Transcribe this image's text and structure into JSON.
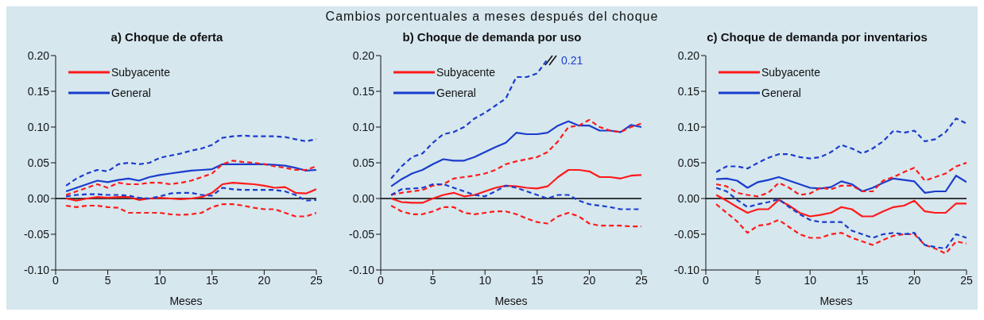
{
  "chart_data": [
    {
      "type": "line",
      "title": "a) Choque de oferta",
      "xlabel": "Meses",
      "x": [
        1,
        2,
        3,
        4,
        5,
        6,
        7,
        8,
        9,
        10,
        11,
        12,
        13,
        14,
        15,
        16,
        17,
        18,
        19,
        20,
        21,
        22,
        23,
        24,
        25
      ],
      "xlim": [
        0,
        25
      ],
      "xticks": [
        0,
        5,
        10,
        15,
        20,
        25
      ],
      "ylim": [
        -0.1,
        0.2
      ],
      "yticks": [
        {
          "value": -0.1,
          "label": "-0.10"
        },
        {
          "value": -0.05,
          "label": "-0.05"
        },
        {
          "value": 0,
          "label": "0.00"
        },
        {
          "value": 0.05,
          "label": "0.05"
        },
        {
          "value": 0.1,
          "label": "0.10"
        },
        {
          "value": 0.15,
          "label": "0.15"
        },
        {
          "value": 0.2,
          "label": "0.20"
        }
      ],
      "grid": false,
      "legend": "top left",
      "marker": "none",
      "ref_lines": [
        {
          "axis": "y",
          "value": 0,
          "color": "#000000"
        }
      ],
      "series": [
        {
          "name": "Subyacente",
          "color": "#ff1a1a",
          "line_style": "solid",
          "values": [
            0.0,
            -0.003,
            0.0,
            0.002,
            0.001,
            0.002,
            0.002,
            -0.002,
            0.0,
            0.001,
            0.0,
            -0.001,
            0.0,
            0.002,
            0.008,
            0.02,
            0.022,
            0.021,
            0.02,
            0.018,
            0.015,
            0.016,
            0.008,
            0.007,
            0.013
          ]
        },
        {
          "name": "General",
          "color": "#1a3ccc",
          "line_style": "solid",
          "values": [
            0.01,
            0.015,
            0.02,
            0.025,
            0.023,
            0.026,
            0.028,
            0.025,
            0.03,
            0.033,
            0.035,
            0.037,
            0.039,
            0.04,
            0.041,
            0.048,
            0.048,
            0.048,
            0.048,
            0.048,
            0.047,
            0.046,
            0.043,
            0.039,
            0.04
          ]
        },
        {
          "color": "#ff1a1a",
          "line_style": "dashed",
          "values": [
            0.005,
            0.01,
            0.015,
            0.02,
            0.015,
            0.022,
            0.02,
            0.02,
            0.022,
            0.022,
            0.02,
            0.022,
            0.025,
            0.03,
            0.035,
            0.048,
            0.053,
            0.051,
            0.05,
            0.048,
            0.045,
            0.043,
            0.04,
            0.04,
            0.045
          ]
        },
        {
          "color": "#ff1a1a",
          "line_style": "dashed",
          "values": [
            -0.01,
            -0.012,
            -0.01,
            -0.01,
            -0.012,
            -0.013,
            -0.02,
            -0.02,
            -0.02,
            -0.02,
            -0.022,
            -0.023,
            -0.022,
            -0.02,
            -0.012,
            -0.008,
            -0.008,
            -0.01,
            -0.013,
            -0.015,
            -0.015,
            -0.02,
            -0.025,
            -0.025,
            -0.02
          ]
        },
        {
          "color": "#1a3ccc",
          "line_style": "dashed",
          "values": [
            0.018,
            0.028,
            0.035,
            0.04,
            0.038,
            0.048,
            0.05,
            0.048,
            0.05,
            0.057,
            0.06,
            0.063,
            0.067,
            0.07,
            0.075,
            0.085,
            0.087,
            0.088,
            0.087,
            0.087,
            0.087,
            0.086,
            0.083,
            0.08,
            0.083
          ]
        },
        {
          "color": "#1a3ccc",
          "line_style": "dashed",
          "values": [
            0.003,
            0.005,
            0.006,
            0.006,
            0.005,
            0.005,
            0.004,
            0.001,
            0.0,
            0.003,
            0.007,
            0.008,
            0.008,
            0.005,
            0.004,
            0.015,
            0.013,
            0.012,
            0.012,
            0.012,
            0.012,
            0.01,
            0.005,
            -0.003,
            -0.002
          ]
        }
      ]
    },
    {
      "type": "line",
      "title": "b) Choque de demanda por uso",
      "subtitle": "Cambios porcentuales a meses después del choque",
      "xlabel": "Meses",
      "x": [
        1,
        2,
        3,
        4,
        5,
        6,
        7,
        8,
        9,
        10,
        11,
        12,
        13,
        14,
        15,
        16,
        17,
        18,
        19,
        20,
        21,
        22,
        23,
        24,
        25
      ],
      "xlim": [
        0,
        25
      ],
      "xticks": [
        0,
        5,
        10,
        15,
        20,
        25
      ],
      "ylim": [
        -0.1,
        0.2
      ],
      "yticks": [
        {
          "value": -0.1,
          "label": "-0.10"
        },
        {
          "value": -0.05,
          "label": "-0.05"
        },
        {
          "value": 0,
          "label": "0.00"
        },
        {
          "value": 0.05,
          "label": "0.05"
        },
        {
          "value": 0.1,
          "label": "0.10"
        },
        {
          "value": 0.15,
          "label": "0.15"
        },
        {
          "value": 0.2,
          "label": "0.20"
        }
      ],
      "grid": false,
      "legend": "top left",
      "marker": "none",
      "ref_lines": [
        {
          "axis": "y",
          "value": 0,
          "color": "#000000"
        }
      ],
      "annotations": [
        "0.21"
      ],
      "series": [
        {
          "name": "Subyacente",
          "color": "#ff1a1a",
          "line_style": "solid",
          "values": [
            0.0,
            -0.005,
            -0.006,
            -0.006,
            0.0,
            0.005,
            0.008,
            0.003,
            0.005,
            0.01,
            0.015,
            0.018,
            0.017,
            0.015,
            0.014,
            0.017,
            0.03,
            0.04,
            0.04,
            0.038,
            0.03,
            0.03,
            0.028,
            0.032,
            0.033
          ]
        },
        {
          "name": "General",
          "color": "#1a3ccc",
          "line_style": "solid",
          "values": [
            0.017,
            0.027,
            0.035,
            0.04,
            0.048,
            0.055,
            0.053,
            0.053,
            0.058,
            0.065,
            0.072,
            0.078,
            0.092,
            0.09,
            0.09,
            0.092,
            0.102,
            0.108,
            0.102,
            0.102,
            0.095,
            0.095,
            0.093,
            0.103,
            0.1
          ]
        },
        {
          "color": "#ff1a1a",
          "line_style": "dashed",
          "values": [
            0.005,
            0.008,
            0.01,
            0.012,
            0.018,
            0.02,
            0.028,
            0.03,
            0.032,
            0.035,
            0.04,
            0.048,
            0.052,
            0.055,
            0.058,
            0.065,
            0.08,
            0.1,
            0.102,
            0.11,
            0.1,
            0.095,
            0.093,
            0.1,
            0.105
          ]
        },
        {
          "color": "#ff1a1a",
          "line_style": "dashed",
          "values": [
            -0.01,
            -0.018,
            -0.022,
            -0.022,
            -0.018,
            -0.012,
            -0.012,
            -0.02,
            -0.022,
            -0.02,
            -0.018,
            -0.018,
            -0.022,
            -0.028,
            -0.033,
            -0.035,
            -0.025,
            -0.02,
            -0.025,
            -0.035,
            -0.038,
            -0.038,
            -0.038,
            -0.039,
            -0.039
          ]
        },
        {
          "color": "#1a3ccc",
          "line_style": "dashed",
          "values": [
            0.028,
            0.045,
            0.058,
            0.063,
            0.078,
            0.09,
            0.093,
            0.1,
            0.112,
            0.12,
            0.13,
            0.14,
            0.17,
            0.17,
            0.175,
            0.195,
            null,
            null,
            null,
            null,
            null,
            null,
            null,
            null,
            null
          ]
        },
        {
          "color": "#1a3ccc",
          "line_style": "dashed",
          "values": [
            0.005,
            0.013,
            0.014,
            0.015,
            0.02,
            0.02,
            0.015,
            0.01,
            0.005,
            0.003,
            0.01,
            0.018,
            0.015,
            0.01,
            0.005,
            0.0,
            0.005,
            0.005,
            -0.003,
            -0.008,
            -0.01,
            -0.012,
            -0.015,
            -0.015,
            -0.015
          ]
        }
      ]
    },
    {
      "type": "line",
      "title": "c) Choque de demanda por inventarios",
      "xlabel": "Meses",
      "x": [
        1,
        2,
        3,
        4,
        5,
        6,
        7,
        8,
        9,
        10,
        11,
        12,
        13,
        14,
        15,
        16,
        17,
        18,
        19,
        20,
        21,
        22,
        23,
        24,
        25
      ],
      "xlim": [
        0,
        25
      ],
      "xticks": [
        0,
        5,
        10,
        15,
        20,
        25
      ],
      "ylim": [
        -0.1,
        0.2
      ],
      "yticks": [
        {
          "value": -0.1,
          "label": "-0.10"
        },
        {
          "value": -0.05,
          "label": "-0.05"
        },
        {
          "value": 0,
          "label": "0.00"
        },
        {
          "value": 0.05,
          "label": "0.05"
        },
        {
          "value": 0.1,
          "label": "0.10"
        },
        {
          "value": 0.15,
          "label": "0.15"
        },
        {
          "value": 0.2,
          "label": "0.20"
        }
      ],
      "grid": false,
      "legend": "top left",
      "marker": "none",
      "ref_lines": [
        {
          "axis": "y",
          "value": 0,
          "color": "#000000"
        }
      ],
      "series": [
        {
          "name": "Subyacente",
          "color": "#ff1a1a",
          "line_style": "solid",
          "values": [
            0.005,
            -0.003,
            -0.012,
            -0.02,
            -0.015,
            -0.015,
            -0.002,
            -0.01,
            -0.02,
            -0.025,
            -0.023,
            -0.02,
            -0.012,
            -0.015,
            -0.025,
            -0.025,
            -0.018,
            -0.012,
            -0.01,
            -0.003,
            -0.018,
            -0.02,
            -0.02,
            -0.007,
            -0.007
          ]
        },
        {
          "name": "General",
          "color": "#1a3ccc",
          "line_style": "solid",
          "values": [
            0.027,
            0.028,
            0.025,
            0.015,
            0.023,
            0.026,
            0.03,
            0.025,
            0.02,
            0.015,
            0.014,
            0.016,
            0.024,
            0.02,
            0.01,
            0.015,
            0.022,
            0.028,
            0.026,
            0.024,
            0.008,
            0.01,
            0.01,
            0.032,
            0.023
          ]
        },
        {
          "color": "#ff1a1a",
          "line_style": "dashed",
          "values": [
            0.02,
            0.017,
            0.008,
            0.005,
            0.003,
            0.008,
            0.022,
            0.015,
            0.005,
            0.007,
            0.015,
            0.013,
            0.018,
            0.018,
            0.01,
            0.01,
            0.025,
            0.03,
            0.037,
            0.043,
            0.025,
            0.03,
            0.035,
            0.045,
            0.05
          ]
        },
        {
          "color": "#ff1a1a",
          "line_style": "dashed",
          "values": [
            -0.008,
            -0.02,
            -0.032,
            -0.048,
            -0.038,
            -0.036,
            -0.03,
            -0.04,
            -0.05,
            -0.055,
            -0.055,
            -0.05,
            -0.048,
            -0.055,
            -0.06,
            -0.065,
            -0.058,
            -0.052,
            -0.05,
            -0.05,
            -0.065,
            -0.07,
            -0.077,
            -0.06,
            -0.063
          ]
        },
        {
          "color": "#1a3ccc",
          "line_style": "dashed",
          "values": [
            0.037,
            0.045,
            0.045,
            0.042,
            0.05,
            0.057,
            0.062,
            0.062,
            0.058,
            0.056,
            0.058,
            0.065,
            0.075,
            0.07,
            0.063,
            0.07,
            0.08,
            0.095,
            0.092,
            0.095,
            0.08,
            0.083,
            0.093,
            0.112,
            0.105
          ]
        },
        {
          "color": "#1a3ccc",
          "line_style": "dashed",
          "values": [
            0.015,
            0.01,
            -0.002,
            -0.012,
            -0.008,
            -0.005,
            -0.001,
            -0.012,
            -0.022,
            -0.03,
            -0.033,
            -0.033,
            -0.033,
            -0.045,
            -0.05,
            -0.055,
            -0.05,
            -0.048,
            -0.05,
            -0.048,
            -0.065,
            -0.068,
            -0.07,
            -0.05,
            -0.055
          ]
        }
      ]
    }
  ]
}
